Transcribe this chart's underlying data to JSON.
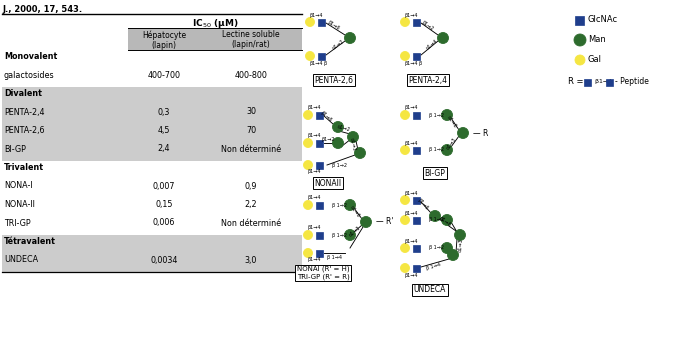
{
  "title_ref": "J., 2000, 17, 543.",
  "table": {
    "rows": [
      {
        "label": "Monovalent",
        "bold": true,
        "bg": "white",
        "v1": "",
        "v2": ""
      },
      {
        "label": "galactosides",
        "bold": false,
        "bg": "white",
        "v1": "400-700",
        "v2": "400-800"
      },
      {
        "label": "Divalent",
        "bold": true,
        "bg": "#cccccc",
        "v1": "",
        "v2": ""
      },
      {
        "label": "PENTA-2,4",
        "bold": false,
        "bg": "#cccccc",
        "v1": "0,3",
        "v2": "30"
      },
      {
        "label": "PENTA-2,6",
        "bold": false,
        "bg": "#cccccc",
        "v1": "4,5",
        "v2": "70"
      },
      {
        "label": "BI-GP",
        "bold": false,
        "bg": "#cccccc",
        "v1": "2,4",
        "v2": "Non déterminé"
      },
      {
        "label": "Trivalent",
        "bold": true,
        "bg": "white",
        "v1": "",
        "v2": ""
      },
      {
        "label": "NONA-I",
        "bold": false,
        "bg": "white",
        "v1": "0,007",
        "v2": "0,9"
      },
      {
        "label": "NONA-II",
        "bold": false,
        "bg": "white",
        "v1": "0,15",
        "v2": "2,2"
      },
      {
        "label": "TRI-GP",
        "bold": false,
        "bg": "white",
        "v1": "0,006",
        "v2": "Non déterminé"
      },
      {
        "label": "Tétravalent",
        "bold": true,
        "bg": "#cccccc",
        "v1": "",
        "v2": ""
      },
      {
        "label": "UNDECA",
        "bold": false,
        "bg": "#cccccc",
        "v1": "0,0034",
        "v2": "3,0"
      }
    ]
  },
  "colors": {
    "yellow": "#F5E642",
    "blue": "#1F3E8C",
    "green": "#2D6B2D",
    "header_bg": "#b8b8b8",
    "row_alt_bg": "#cccccc"
  }
}
